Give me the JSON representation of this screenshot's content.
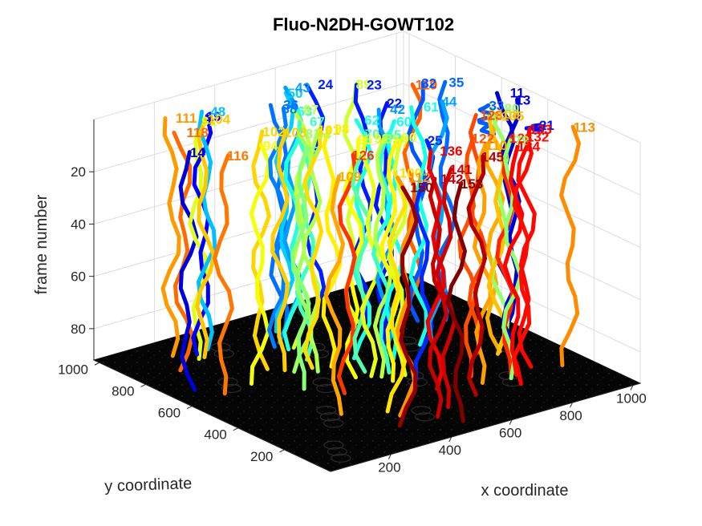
{
  "chart_data": {
    "type": "line3d",
    "title": "Fluo-N2DH-GOWT102",
    "xlabel": "x coordinate",
    "ylabel": "y coordinate",
    "zlabel": "frame number",
    "xlim": [
      0,
      1024
    ],
    "ylim": [
      0,
      1024
    ],
    "zlim": [
      0,
      92
    ],
    "z_reversed": true,
    "grid": true,
    "colormap": "jet",
    "x_ticks": [
      "200",
      "400",
      "600",
      "800",
      "1000"
    ],
    "y_ticks": [
      "200",
      "400",
      "600",
      "800",
      "1000"
    ],
    "z_ticks": [
      "20",
      "40",
      "60",
      "80"
    ],
    "tracks": [
      {
        "label": "11",
        "x": 980,
        "y": 520,
        "z0": 1,
        "z1": 92
      },
      {
        "label": "13",
        "x": 960,
        "y": 470,
        "z0": 1,
        "z1": 92
      },
      {
        "label": "14",
        "x": 60,
        "y": 700,
        "z0": 1,
        "z1": 92
      },
      {
        "label": "19",
        "x": 250,
        "y": 880,
        "z0": 1,
        "z1": 92
      },
      {
        "label": "21",
        "x": 1000,
        "y": 420,
        "z0": 10,
        "z1": 12
      },
      {
        "label": "22",
        "x": 680,
        "y": 660,
        "z0": 1,
        "z1": 92
      },
      {
        "label": "23",
        "x": 720,
        "y": 800,
        "z0": 1,
        "z1": 92
      },
      {
        "label": "24",
        "x": 620,
        "y": 880,
        "z0": 1,
        "z1": 92
      },
      {
        "label": "25",
        "x": 600,
        "y": 380,
        "z0": 1,
        "z1": 92
      },
      {
        "label": "32",
        "x": 840,
        "y": 720,
        "z0": 1,
        "z1": 92
      },
      {
        "label": "33",
        "x": 880,
        "y": 480,
        "z0": 1,
        "z1": 12
      },
      {
        "label": "35",
        "x": 900,
        "y": 680,
        "z0": 1,
        "z1": 92
      },
      {
        "label": "36",
        "x": 460,
        "y": 820,
        "z0": 1,
        "z1": 92
      },
      {
        "label": "38",
        "x": 440,
        "y": 800,
        "z0": 1,
        "z1": 92
      },
      {
        "label": "42",
        "x": 660,
        "y": 620,
        "z0": 1,
        "z1": 92
      },
      {
        "label": "43",
        "x": 560,
        "y": 900,
        "z0": 1,
        "z1": 92
      },
      {
        "label": "44",
        "x": 800,
        "y": 580,
        "z0": 1,
        "z1": 92
      },
      {
        "label": "48",
        "x": 280,
        "y": 900,
        "z0": 1,
        "z1": 92
      },
      {
        "label": "50",
        "x": 520,
        "y": 880,
        "z0": 1,
        "z1": 92
      },
      {
        "label": "60",
        "x": 620,
        "y": 540,
        "z0": 1,
        "z1": 92
      },
      {
        "label": "61",
        "x": 740,
        "y": 580,
        "z0": 1,
        "z1": 92
      },
      {
        "label": "62",
        "x": 560,
        "y": 600,
        "z0": 1,
        "z1": 92
      },
      {
        "label": "63",
        "x": 460,
        "y": 760,
        "z0": 1,
        "z1": 92
      },
      {
        "label": "65",
        "x": 540,
        "y": 480,
        "z0": 1,
        "z1": 92
      },
      {
        "label": "67",
        "x": 440,
        "y": 680,
        "z0": 1,
        "z1": 92
      },
      {
        "label": "70",
        "x": 500,
        "y": 520,
        "z0": 1,
        "z1": 92
      },
      {
        "label": "78",
        "x": 300,
        "y": 520,
        "z0": 1,
        "z1": 92
      },
      {
        "label": "79",
        "x": 780,
        "y": 240,
        "z0": 1,
        "z1": 92
      },
      {
        "label": "80",
        "x": 900,
        "y": 440,
        "z0": 1,
        "z1": 92
      },
      {
        "label": "81",
        "x": 380,
        "y": 620,
        "z0": 1,
        "z1": 92
      },
      {
        "label": "84",
        "x": 400,
        "y": 600,
        "z0": 1,
        "z1": 92
      },
      {
        "label": "85",
        "x": 520,
        "y": 460,
        "z0": 1,
        "z1": 92
      },
      {
        "label": "87",
        "x": 480,
        "y": 760,
        "z0": 1,
        "z1": 92
      },
      {
        "label": "89",
        "x": 700,
        "y": 820,
        "z0": 1,
        "z1": 92
      },
      {
        "label": "90",
        "x": 560,
        "y": 440,
        "z0": 1,
        "z1": 92
      },
      {
        "label": "91",
        "x": 220,
        "y": 860,
        "z0": 1,
        "z1": 92
      },
      {
        "label": "92",
        "x": 500,
        "y": 480,
        "z0": 1,
        "z1": 92
      },
      {
        "label": "94",
        "x": 240,
        "y": 620,
        "z0": 1,
        "z1": 92
      },
      {
        "label": "95",
        "x": 460,
        "y": 500,
        "z0": 1,
        "z1": 92
      },
      {
        "label": "97",
        "x": 520,
        "y": 420,
        "z0": 1,
        "z1": 92
      },
      {
        "label": "98",
        "x": 460,
        "y": 600,
        "z0": 1,
        "z1": 92
      },
      {
        "label": "100",
        "x": 400,
        "y": 240,
        "z0": 1,
        "z1": 92
      },
      {
        "label": "101",
        "x": 420,
        "y": 620,
        "z0": 1,
        "z1": 92
      },
      {
        "label": "102",
        "x": 300,
        "y": 700,
        "z0": 1,
        "z1": 92
      },
      {
        "label": "103",
        "x": 340,
        "y": 660,
        "z0": 1,
        "z1": 92
      },
      {
        "label": "104",
        "x": 240,
        "y": 860,
        "z0": 1,
        "z1": 92
      },
      {
        "label": "105",
        "x": 860,
        "y": 400,
        "z0": 1,
        "z1": 92
      },
      {
        "label": "108",
        "x": 860,
        "y": 420,
        "z0": 1,
        "z1": 92
      },
      {
        "label": "109",
        "x": 260,
        "y": 320,
        "z0": 1,
        "z1": 92
      },
      {
        "label": "110",
        "x": 700,
        "y": 260,
        "z0": 1,
        "z1": 92
      },
      {
        "label": "111",
        "x": 180,
        "y": 920,
        "z0": 1,
        "z1": 92
      },
      {
        "label": "112",
        "x": 400,
        "y": 200,
        "z0": 1,
        "z1": 92
      },
      {
        "label": "113",
        "x": 960,
        "y": 220,
        "z0": 1,
        "z1": 92
      },
      {
        "label": "116",
        "x": 120,
        "y": 620,
        "z0": 1,
        "z1": 92
      },
      {
        "label": "118",
        "x": 140,
        "y": 820,
        "z0": 1,
        "z1": 92
      },
      {
        "label": "119",
        "x": 820,
        "y": 720,
        "z0": 1,
        "z1": 92
      },
      {
        "label": "122",
        "x": 700,
        "y": 320,
        "z0": 1,
        "z1": 92
      },
      {
        "label": "123",
        "x": 820,
        "y": 440,
        "z0": 1,
        "z1": 92
      },
      {
        "label": "126",
        "x": 380,
        "y": 420,
        "z0": 1,
        "z1": 92
      },
      {
        "label": "128",
        "x": 780,
        "y": 260,
        "z0": 1,
        "z1": 92
      },
      {
        "label": "132",
        "x": 820,
        "y": 240,
        "z0": 1,
        "z1": 92
      },
      {
        "label": "133",
        "x": 860,
        "y": 280,
        "z0": 1,
        "z1": 92
      },
      {
        "label": "134",
        "x": 760,
        "y": 200,
        "z0": 1,
        "z1": 92
      },
      {
        "label": "136",
        "x": 580,
        "y": 300,
        "z0": 1,
        "z1": 92
      },
      {
        "label": "141",
        "x": 520,
        "y": 180,
        "z0": 1,
        "z1": 92
      },
      {
        "label": "142",
        "x": 460,
        "y": 140,
        "z0": 1,
        "z1": 92
      },
      {
        "label": "145",
        "x": 640,
        "y": 200,
        "z0": 1,
        "z1": 92
      },
      {
        "label": "150",
        "x": 360,
        "y": 140,
        "z0": 1,
        "z1": 92
      },
      {
        "label": "153",
        "x": 480,
        "y": 80,
        "z0": 1,
        "z1": 92
      }
    ]
  }
}
